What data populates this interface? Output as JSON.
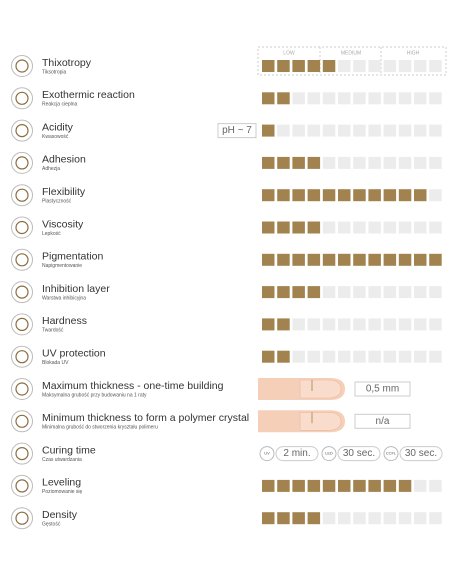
{
  "scale_header": [
    "LOW",
    "MEDIUM",
    "HIGH"
  ],
  "rows": [
    {
      "title": "Thixotropy",
      "subtitle": "Tiksotropia",
      "level": 5
    },
    {
      "title": "Exothermic reaction",
      "subtitle": "Reakcja cieplna",
      "level": 2
    },
    {
      "title": "Acidity",
      "subtitle": "Kwasowość",
      "badge": "pH ~ 7",
      "level": 1
    },
    {
      "title": "Adhesion",
      "subtitle": "Adhezja",
      "level": 4
    },
    {
      "title": "Flexibility",
      "subtitle": "Plastyczność",
      "level": 11
    },
    {
      "title": "Viscosity",
      "subtitle": "Lepkość",
      "level": 4
    },
    {
      "title": "Pigmentation",
      "subtitle": "Napigmentowanie",
      "level": 12
    },
    {
      "title": "Inhibition layer",
      "subtitle": "Warstwa inhibicyjna",
      "level": 4
    },
    {
      "title": "Hardness",
      "subtitle": "Twardość",
      "level": 2
    },
    {
      "title": "UV protection",
      "subtitle": "Blokada UV",
      "level": 2
    },
    {
      "title": "Maximum thickness - one-time building",
      "subtitle": "Maksymalna grubość przy budowaniu na 1 raty",
      "value": "0,5 mm"
    },
    {
      "title": "Minimum thickness to form a polymer crystal",
      "subtitle": "Minimalna grubość do stworzenia kryształu polimeru",
      "value": "n/a"
    },
    {
      "title": "Curing time",
      "subtitle": "Czas utwardzania",
      "curing": [
        {
          "lamp": "UV",
          "time": "2 min."
        },
        {
          "lamp": "LED",
          "time": "30 sec."
        },
        {
          "lamp": "CCFL",
          "time": "30 sec."
        }
      ]
    },
    {
      "title": "Leveling",
      "subtitle": "Poziomowanie się",
      "level": 10
    },
    {
      "title": "Density",
      "subtitle": "Gęstość",
      "level": 4
    }
  ]
}
